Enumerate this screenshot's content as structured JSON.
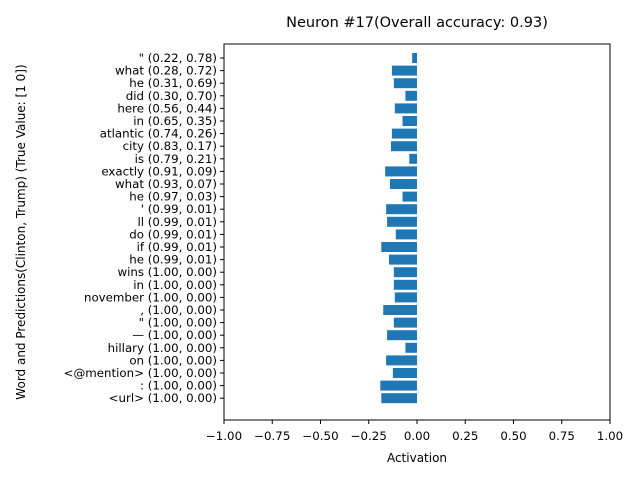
{
  "chart_data": {
    "type": "bar",
    "orientation": "horizontal",
    "title": "Neuron #17(Overall accuracy: 0.93)",
    "xlabel": "Activation",
    "ylabel": "Word and Predictions(Clinton, Trump) (True Value: [1 0])",
    "xlim": [
      -1.0,
      1.0
    ],
    "xticks": [
      "−1.00",
      "−0.75",
      "−0.50",
      "−0.25",
      "0.00",
      "0.25",
      "0.50",
      "0.75",
      "1.00"
    ],
    "bar_color": "#1f77b4",
    "grid": false,
    "categories": [
      "\" (0.22, 0.78)",
      "what (0.28, 0.72)",
      "he (0.31, 0.69)",
      "did (0.30, 0.70)",
      "here (0.56, 0.44)",
      "in (0.65, 0.35)",
      "atlantic (0.74, 0.26)",
      "city (0.83, 0.17)",
      "is (0.79, 0.21)",
      "exactly (0.91, 0.09)",
      "what (0.93, 0.07)",
      "he (0.97, 0.03)",
      "' (0.99, 0.01)",
      "ll (0.99, 0.01)",
      "do (0.99, 0.01)",
      "if (0.99, 0.01)",
      "he (0.99, 0.01)",
      "wins (1.00, 0.00)",
      "in (1.00, 0.00)",
      "november (1.00, 0.00)",
      ", (1.00, 0.00)",
      "\" (1.00, 0.00)",
      "— (1.00, 0.00)",
      "hillary (1.00, 0.00)",
      "on (1.00, 0.00)",
      "<@mention> (1.00, 0.00)",
      ": (1.00, 0.00)",
      "<url> (1.00, 0.00)"
    ],
    "values": [
      -0.025,
      -0.13,
      -0.12,
      -0.06,
      -0.115,
      -0.075,
      -0.13,
      -0.135,
      -0.04,
      -0.165,
      -0.14,
      -0.075,
      -0.16,
      -0.155,
      -0.11,
      -0.185,
      -0.145,
      -0.12,
      -0.12,
      -0.115,
      -0.175,
      -0.12,
      -0.155,
      -0.06,
      -0.16,
      -0.125,
      -0.19,
      -0.185
    ]
  }
}
